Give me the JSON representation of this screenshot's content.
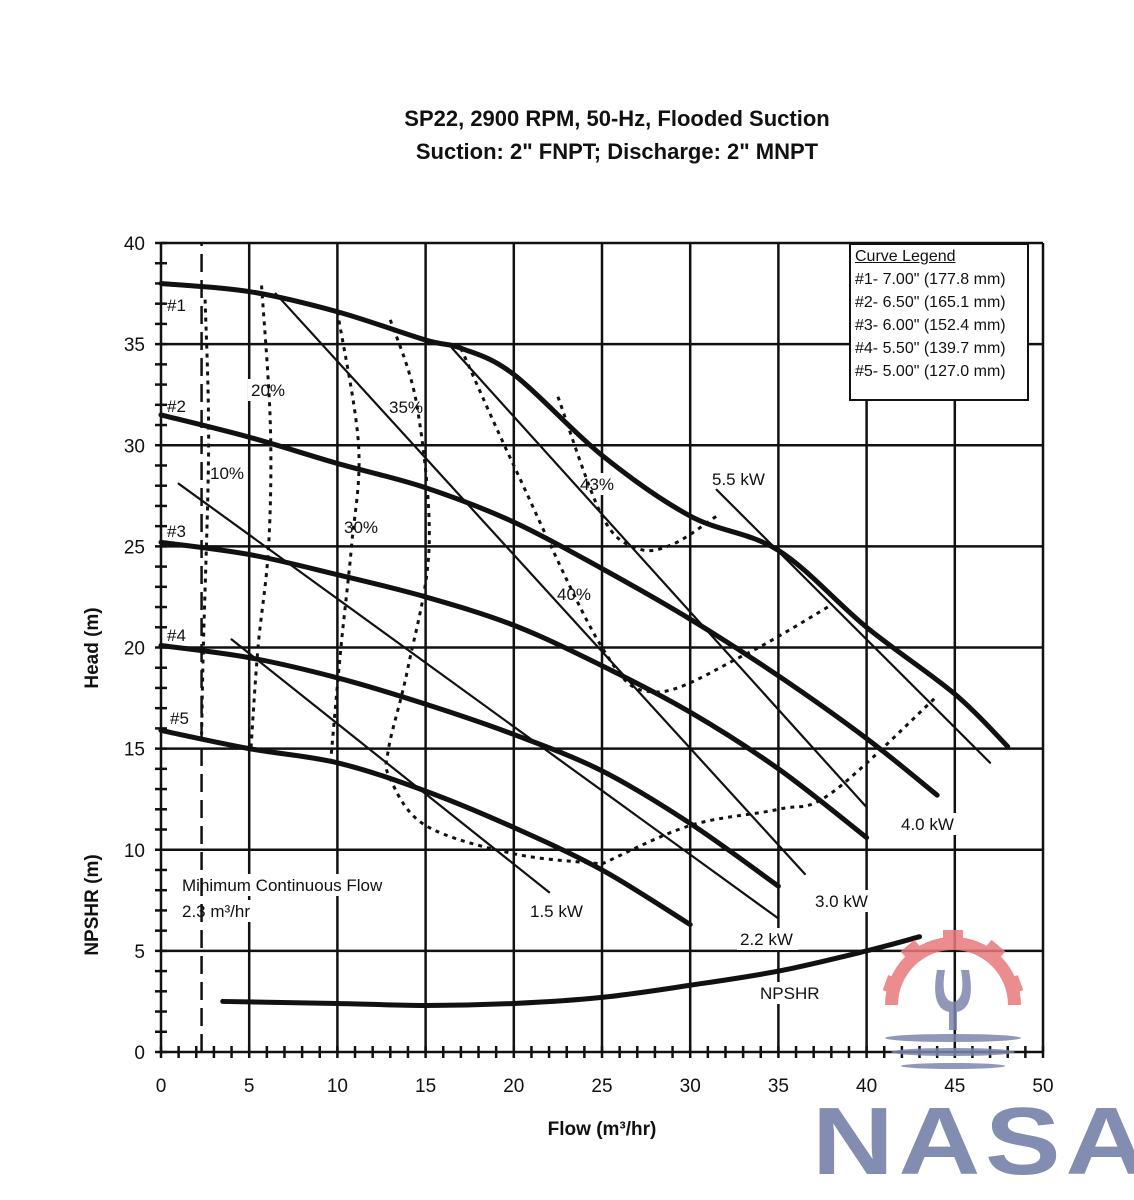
{
  "header": {
    "title_line1": "SP22, 2900 RPM, 50-Hz, Flooded Suction",
    "title_line2": "Suction: 2\" FNPT; Discharge: 2\" MNPT"
  },
  "legend": {
    "heading": "Curve Legend",
    "items": [
      "#1- 7.00\" (177.8 mm)",
      "#2- 6.50\" (165.1 mm)",
      "#3- 6.00\" (152.4 mm)",
      "#4- 5.50\" (139.7 mm)",
      "#5- 5.00\" (127.0 mm)"
    ]
  },
  "axes": {
    "xlabel": "Flow (m³/hr)",
    "ylabel_head": "Head (m)",
    "ylabel_npshr": "NPSHR (m)",
    "xticks": [
      "0",
      "5",
      "10",
      "15",
      "20",
      "25",
      "30",
      "35",
      "40",
      "45",
      "50"
    ],
    "yticks": [
      "0",
      "5",
      "10",
      "15",
      "20",
      "25",
      "30",
      "35",
      "40"
    ]
  },
  "annotations": {
    "min_flow_line1": "Minimum Continuous Flow",
    "min_flow_line2": "2.3 m³/hr",
    "npshr_label": "NPSHR",
    "curve_labels": [
      "#1",
      "#2",
      "#3",
      "#4",
      "#5"
    ],
    "efficiency_labels": [
      "10%",
      "20%",
      "30%",
      "35%",
      "40%",
      "43%"
    ],
    "power_labels": [
      "1.5 kW",
      "2.2 kW",
      "3.0 kW",
      "4.0 kW",
      "5.5 kW"
    ]
  },
  "watermark": {
    "text": "NASA",
    "gear_color": "#e8797b",
    "text_color": "#7d86ad"
  },
  "chart_data": {
    "type": "line",
    "title": "SP22, 2900 RPM, 50-Hz, Flooded Suction / Suction: 2\" FNPT; Discharge: 2\" MNPT",
    "xlabel": "Flow (m³/hr)",
    "ylabel": "Head (m) / NPSHR (m)",
    "xlim": [
      0,
      50
    ],
    "ylim": [
      0,
      40
    ],
    "grid": true,
    "legend_position": "top-right",
    "series": [
      {
        "name": "#1- 7.00\" (177.8 mm)",
        "style": "thick",
        "x": [
          0,
          5,
          10,
          15,
          17,
          20,
          25,
          30,
          35,
          40,
          45,
          48
        ],
        "y": [
          38,
          37.6,
          36.6,
          35.2,
          34.8,
          33.5,
          29.5,
          26.5,
          24.8,
          21,
          17.7,
          15.1
        ]
      },
      {
        "name": "#2- 6.50\" (165.1 mm)",
        "style": "thick",
        "x": [
          0,
          5,
          10,
          15,
          20,
          25,
          30,
          35,
          40,
          44
        ],
        "y": [
          31.5,
          30.4,
          29.1,
          27.9,
          26.2,
          23.9,
          21.4,
          18.6,
          15.5,
          12.7
        ]
      },
      {
        "name": "#3- 6.00\" (152.4 mm)",
        "style": "thick",
        "x": [
          0,
          5,
          10,
          15,
          20,
          25,
          30,
          35,
          40
        ],
        "y": [
          25.2,
          24.6,
          23.6,
          22.5,
          21.1,
          19.1,
          16.8,
          14,
          10.6
        ]
      },
      {
        "name": "#4- 5.50\" (139.7 mm)",
        "style": "thick",
        "x": [
          0,
          5,
          10,
          15,
          20,
          25,
          30,
          35
        ],
        "y": [
          20.1,
          19.5,
          18.5,
          17.2,
          15.7,
          13.9,
          11.3,
          8.2
        ]
      },
      {
        "name": "#5- 5.00\" (127.0 mm)",
        "style": "thick",
        "x": [
          0,
          5,
          10,
          15,
          20,
          25,
          30
        ],
        "y": [
          15.9,
          15.0,
          14.3,
          12.9,
          11.1,
          9.0,
          6.3
        ]
      },
      {
        "name": "NPSHR",
        "style": "thick",
        "x": [
          3.5,
          10,
          15,
          20,
          25,
          30,
          35,
          40,
          43
        ],
        "y": [
          2.5,
          2.4,
          2.3,
          2.4,
          2.7,
          3.3,
          4.0,
          5.0,
          5.7
        ]
      },
      {
        "name": "Minimum Continuous Flow 2.3 m³/hr",
        "style": "dashed-vertical",
        "x": [
          2.3,
          2.3
        ],
        "y": [
          0,
          40
        ]
      },
      {
        "name": "1.5 kW",
        "style": "thin",
        "x": [
          4,
          22
        ],
        "y": [
          20.4,
          7.9
        ]
      },
      {
        "name": "2.2 kW",
        "style": "thin",
        "x": [
          1,
          35
        ],
        "y": [
          28.1,
          6.6
        ]
      },
      {
        "name": "3.0 kW",
        "style": "thin",
        "x": [
          6.5,
          36.5
        ],
        "y": [
          37.5,
          8.8
        ]
      },
      {
        "name": "4.0 kW",
        "style": "thin",
        "x": [
          16.5,
          40
        ],
        "y": [
          34.8,
          12.1
        ]
      },
      {
        "name": "5.5 kW",
        "style": "thin",
        "x": [
          31.5,
          47
        ],
        "y": [
          27.8,
          14.3
        ]
      },
      {
        "name": "10% eff",
        "style": "dotted",
        "x": [
          2.5,
          2.7,
          2.4,
          2.3
        ],
        "y": [
          37.2,
          30,
          20,
          15.7
        ]
      },
      {
        "name": "20% eff",
        "style": "dotted",
        "x": [
          5.7,
          6.2,
          6.1,
          5.5,
          5.1
        ],
        "y": [
          37.9,
          31,
          25,
          20,
          15
        ]
      },
      {
        "name": "30% eff",
        "style": "dotted",
        "x": [
          10,
          11.2,
          10.8,
          10.2,
          9.6
        ],
        "y": [
          36.6,
          30,
          25,
          20,
          14.2
        ]
      },
      {
        "name": "35% eff",
        "style": "dotted",
        "x": [
          13,
          14.5,
          15.2,
          14,
          12.9,
          13,
          15,
          20,
          25
        ],
        "y": [
          36.2,
          32,
          25,
          19,
          15,
          13.5,
          11.2,
          9.8,
          9.3
        ]
      },
      {
        "name": "40% eff",
        "style": "dotted",
        "x": [
          17,
          20,
          25,
          28,
          33,
          38
        ],
        "y": [
          34.8,
          29,
          20,
          17.8,
          19.6,
          22.1
        ]
      },
      {
        "name": "43% eff",
        "style": "dotted",
        "x": [
          22.5,
          25,
          27,
          29,
          31.5
        ],
        "y": [
          32.4,
          26.5,
          24.9,
          25.1,
          26.5
        ]
      },
      {
        "name": "40% eff (low)",
        "style": "dotted",
        "x": [
          25,
          30,
          35,
          38,
          44
        ],
        "y": [
          9.3,
          11.2,
          12,
          12.8,
          17.6
        ]
      }
    ]
  }
}
